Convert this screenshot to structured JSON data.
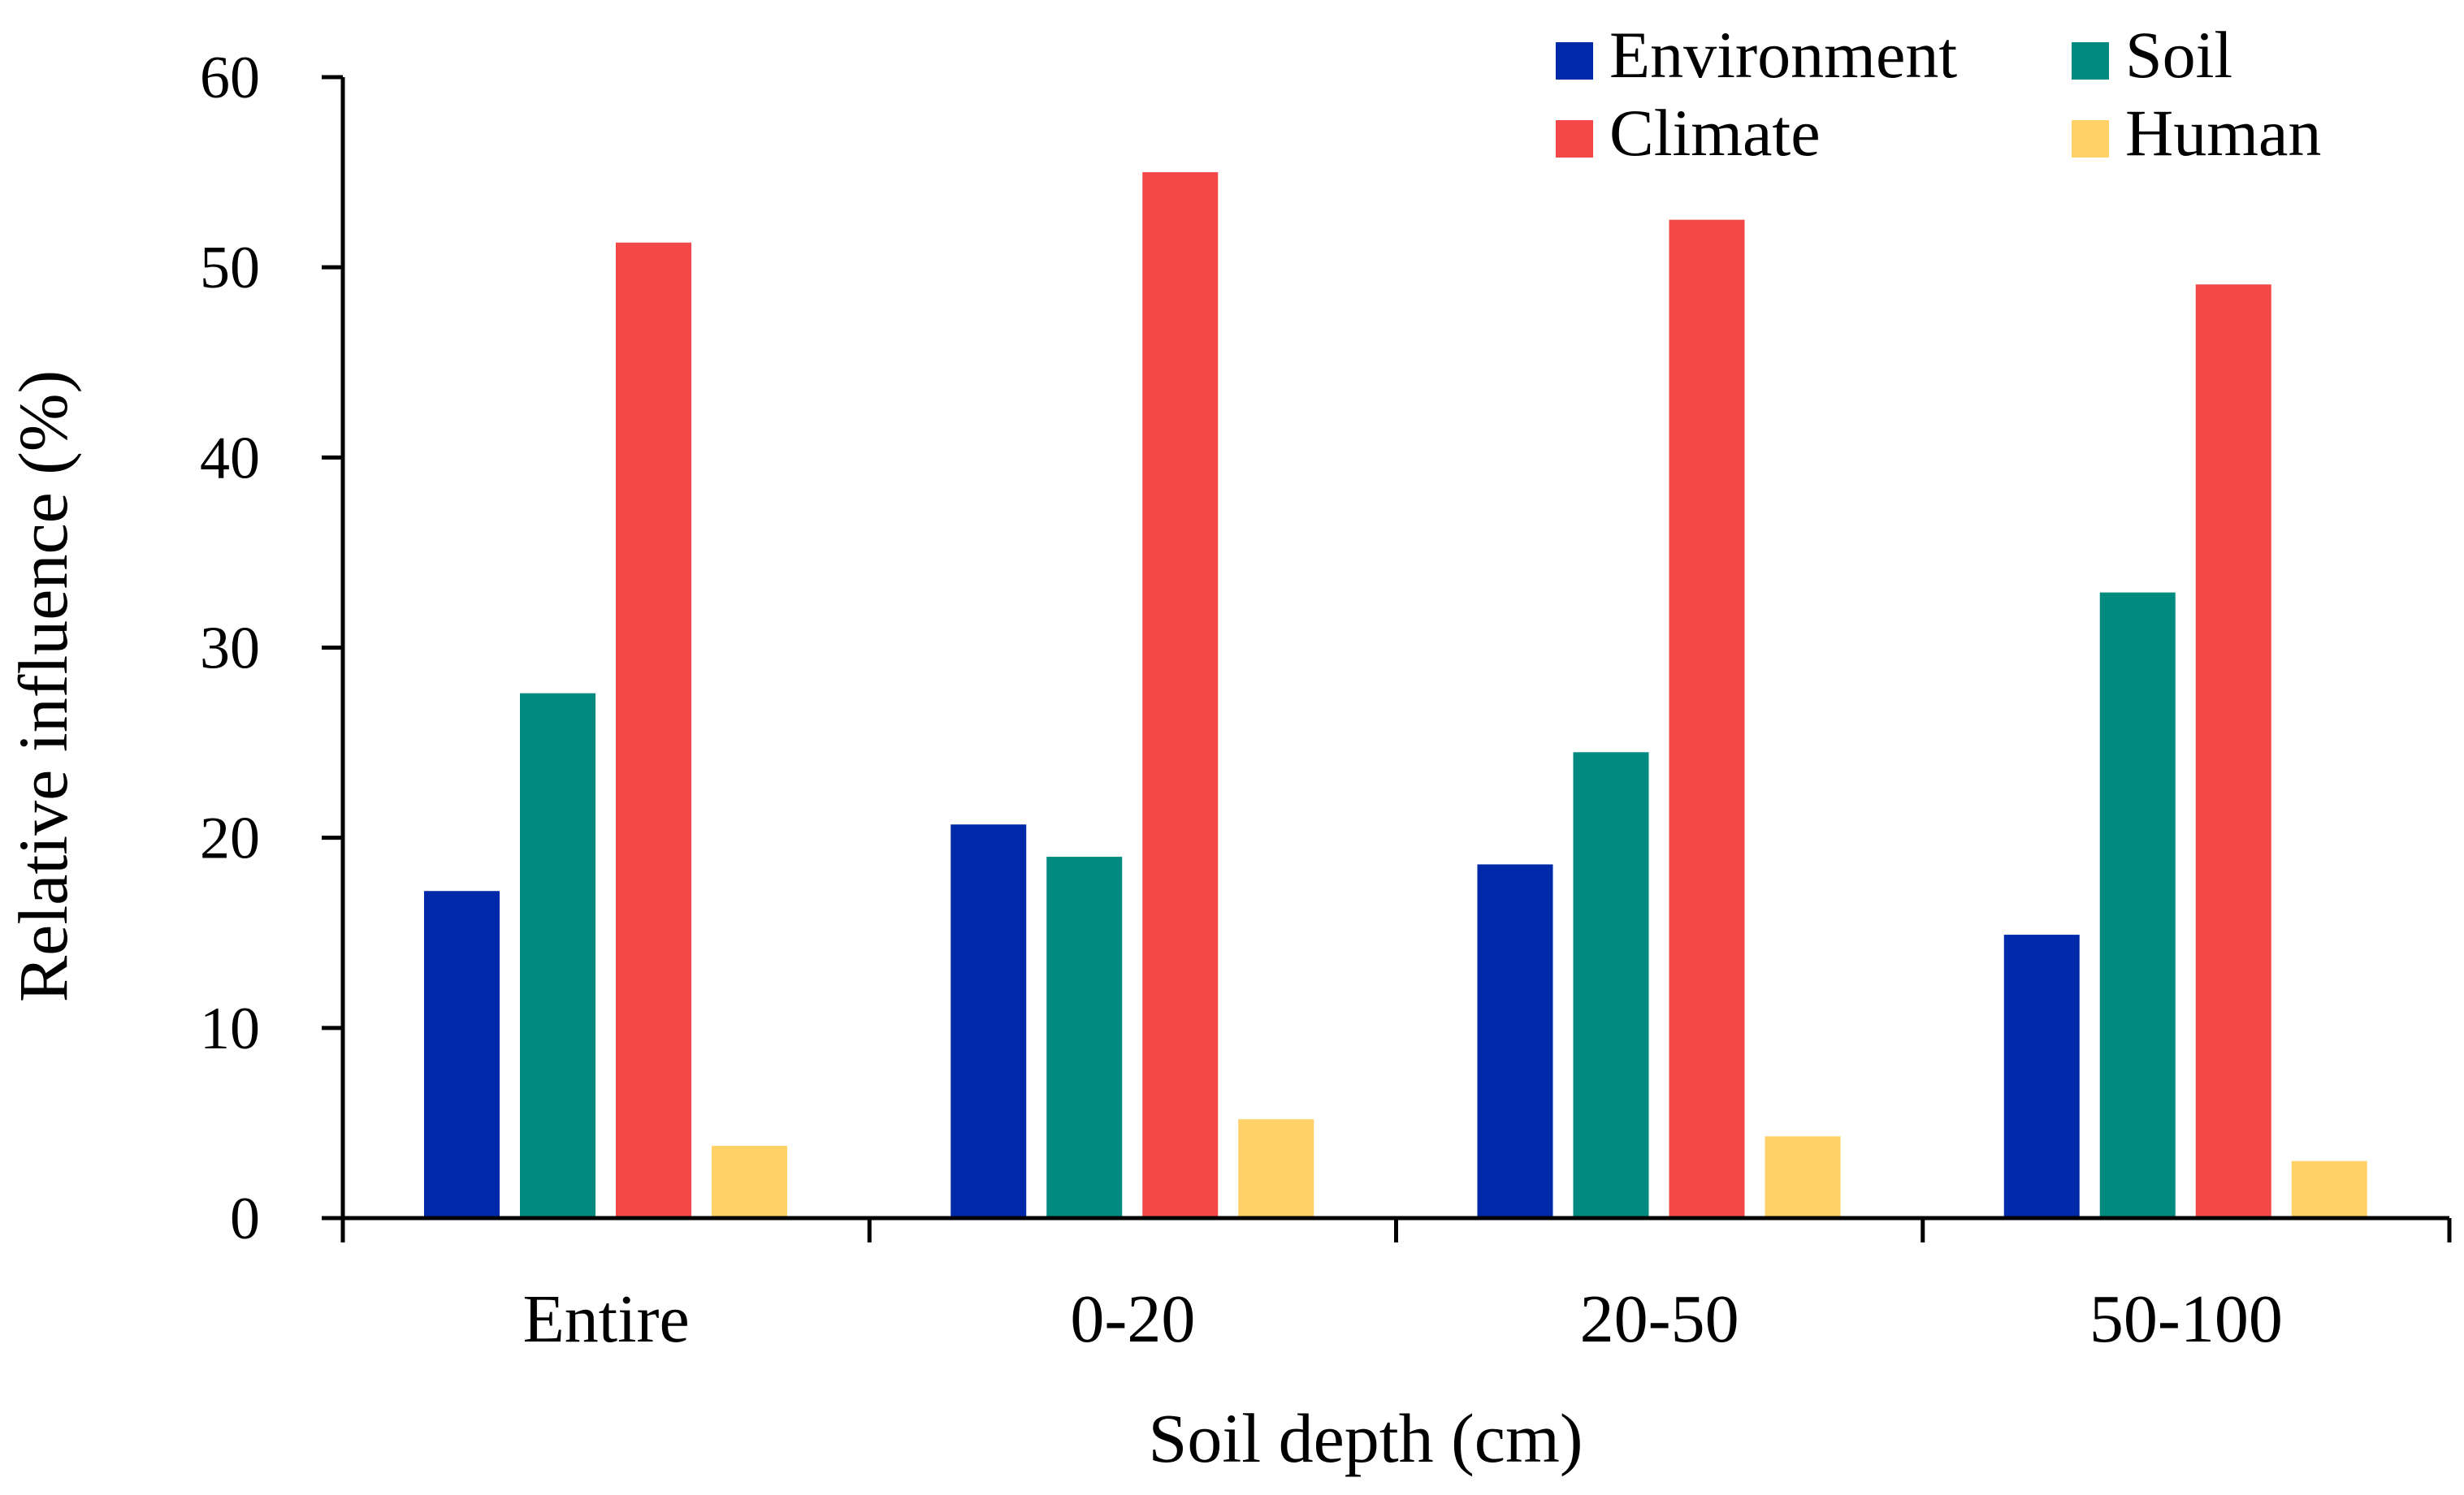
{
  "chart_data": {
    "type": "bar",
    "title": "",
    "xlabel": "Soil depth (cm)",
    "ylabel": "Relative influence (%)",
    "ylim": [
      0,
      60
    ],
    "yticks": [
      "0",
      "10",
      "20",
      "30",
      "40",
      "50",
      "60"
    ],
    "categories": [
      "Entire",
      "0-20",
      "20-50",
      "50-100"
    ],
    "series": [
      {
        "name": "Environment",
        "color": "#0029AA",
        "values": [
          17.2,
          20.7,
          18.6,
          14.9
        ]
      },
      {
        "name": "Soil",
        "color": "#008A80",
        "values": [
          27.6,
          19.0,
          24.5,
          32.9
        ]
      },
      {
        "name": "Climate",
        "color": "#F44848",
        "values": [
          51.3,
          55.0,
          52.5,
          49.1
        ]
      },
      {
        "name": "Human",
        "color": "#FFD166",
        "values": [
          3.8,
          5.2,
          4.3,
          3.0
        ]
      }
    ],
    "legend": {
      "placement": "top-right",
      "columns": 2,
      "order": [
        "Environment",
        "Soil",
        "Climate",
        "Human"
      ]
    },
    "grid": false
  }
}
